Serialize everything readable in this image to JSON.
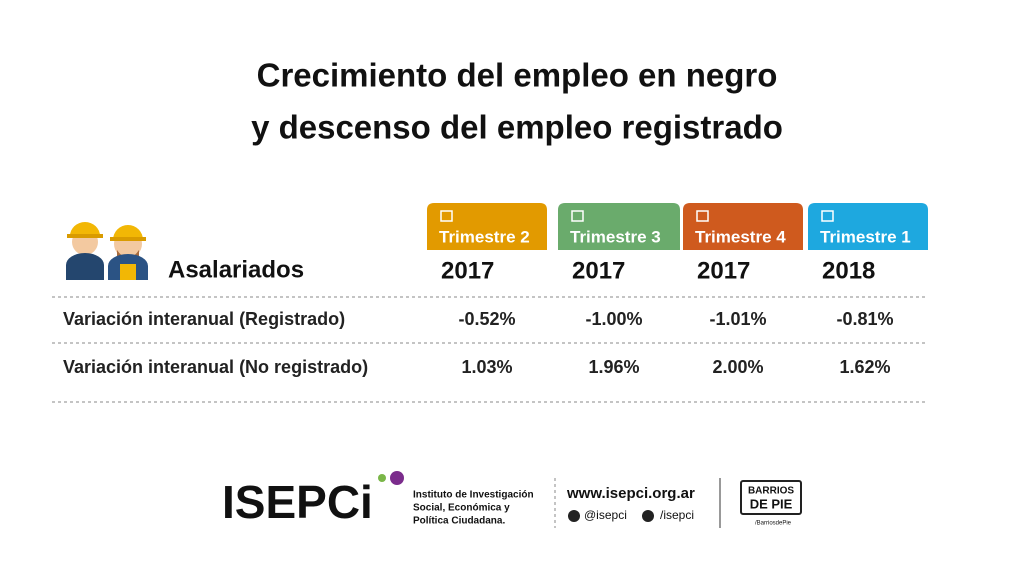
{
  "title": [
    "Crecimiento del empleo en negro",
    "y descenso del empleo registrado"
  ],
  "table": {
    "row_header": "Asalariados",
    "columns": [
      {
        "quarter": "Trimestre 2",
        "year": "2017",
        "color": "#e29a00"
      },
      {
        "quarter": "Trimestre 3",
        "year": "2017",
        "color": "#6aab6c"
      },
      {
        "quarter": "Trimestre 4",
        "year": "2017",
        "color": "#cf5a1e"
      },
      {
        "quarter": "Trimestre 1",
        "year": "2018",
        "color": "#1ea8df"
      }
    ],
    "rows": [
      {
        "label": "Variación interanual (Registrado)",
        "values": [
          "-0.52%",
          "-1.00%",
          "-1.01%",
          "-0.81%"
        ]
      },
      {
        "label": "Variación interanual (No registrado)",
        "values": [
          "1.03%",
          "1.96%",
          "2.00%",
          "1.62%"
        ]
      }
    ]
  },
  "footer": {
    "logo": "ISEPCi",
    "institute": [
      "Instituto de Investigación",
      "Social, Económica y",
      "Política Ciudadana."
    ],
    "website": "www.isepci.org.ar",
    "twitter": "@isepci",
    "facebook": "/isepci",
    "partner": [
      "BARRIOS",
      "DE PIE"
    ],
    "partner_handle": "/BarriosdePie"
  }
}
